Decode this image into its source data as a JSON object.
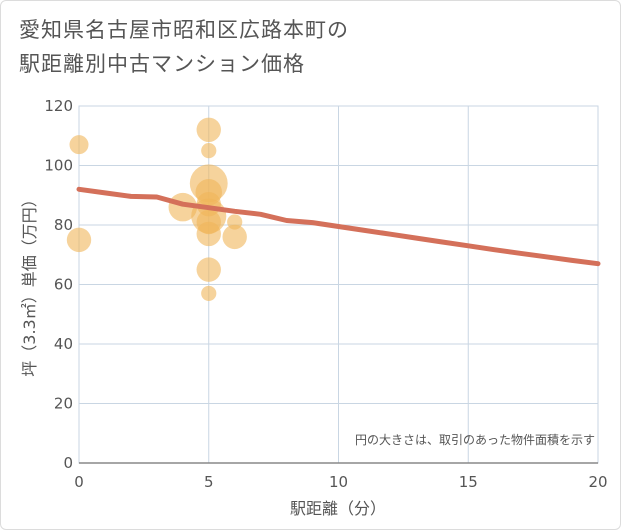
{
  "page": {
    "title_line1": "愛知県名古屋市昭和区広路本町の",
    "title_line2": "駅距離別中古マンション価格"
  },
  "chart_data": {
    "type": "scatter",
    "title": "愛知県名古屋市昭和区広路本町の駅距離別中古マンション価格",
    "xlabel": "駅距離（分）",
    "ylabel": "坪（3.3㎡）単価（万円）",
    "xlim": [
      0,
      20
    ],
    "ylim": [
      0,
      120
    ],
    "xticks": [
      0,
      5,
      10,
      15,
      20
    ],
    "yticks": [
      0,
      20,
      40,
      60,
      80,
      100,
      120
    ],
    "grid": true,
    "note": "円の大きさは、取引のあった物件面積を示す",
    "colors": {
      "bubble": "#f0b65a",
      "trend": "#d4705a",
      "grid": "#c9d6e3"
    },
    "points": [
      {
        "x": 0,
        "y": 107,
        "size": 2
      },
      {
        "x": 0,
        "y": 75,
        "size": 4
      },
      {
        "x": 4,
        "y": 86,
        "size": 6
      },
      {
        "x": 5,
        "y": 112,
        "size": 4
      },
      {
        "x": 5,
        "y": 105,
        "size": 1
      },
      {
        "x": 5,
        "y": 94,
        "size": 12
      },
      {
        "x": 5,
        "y": 91,
        "size": 5
      },
      {
        "x": 5,
        "y": 87,
        "size": 4
      },
      {
        "x": 5,
        "y": 83,
        "size": 10
      },
      {
        "x": 5,
        "y": 81,
        "size": 4
      },
      {
        "x": 5,
        "y": 77,
        "size": 4
      },
      {
        "x": 5,
        "y": 65,
        "size": 4
      },
      {
        "x": 5,
        "y": 57,
        "size": 1
      },
      {
        "x": 6,
        "y": 81,
        "size": 1
      },
      {
        "x": 6,
        "y": 76,
        "size": 4
      }
    ],
    "trend": {
      "x": [
        0,
        1,
        2,
        3,
        4,
        5,
        6,
        7,
        8,
        9,
        10,
        11,
        12,
        13,
        14,
        15,
        16,
        17,
        18,
        19,
        20
      ],
      "y": [
        92,
        90.8,
        89.6,
        89.4,
        87,
        85.8,
        84.6,
        83.6,
        81.5,
        80.8,
        79.5,
        78.2,
        76.9,
        75.6,
        74.3,
        73,
        71.7,
        70.5,
        69.3,
        68.1,
        67
      ]
    }
  }
}
